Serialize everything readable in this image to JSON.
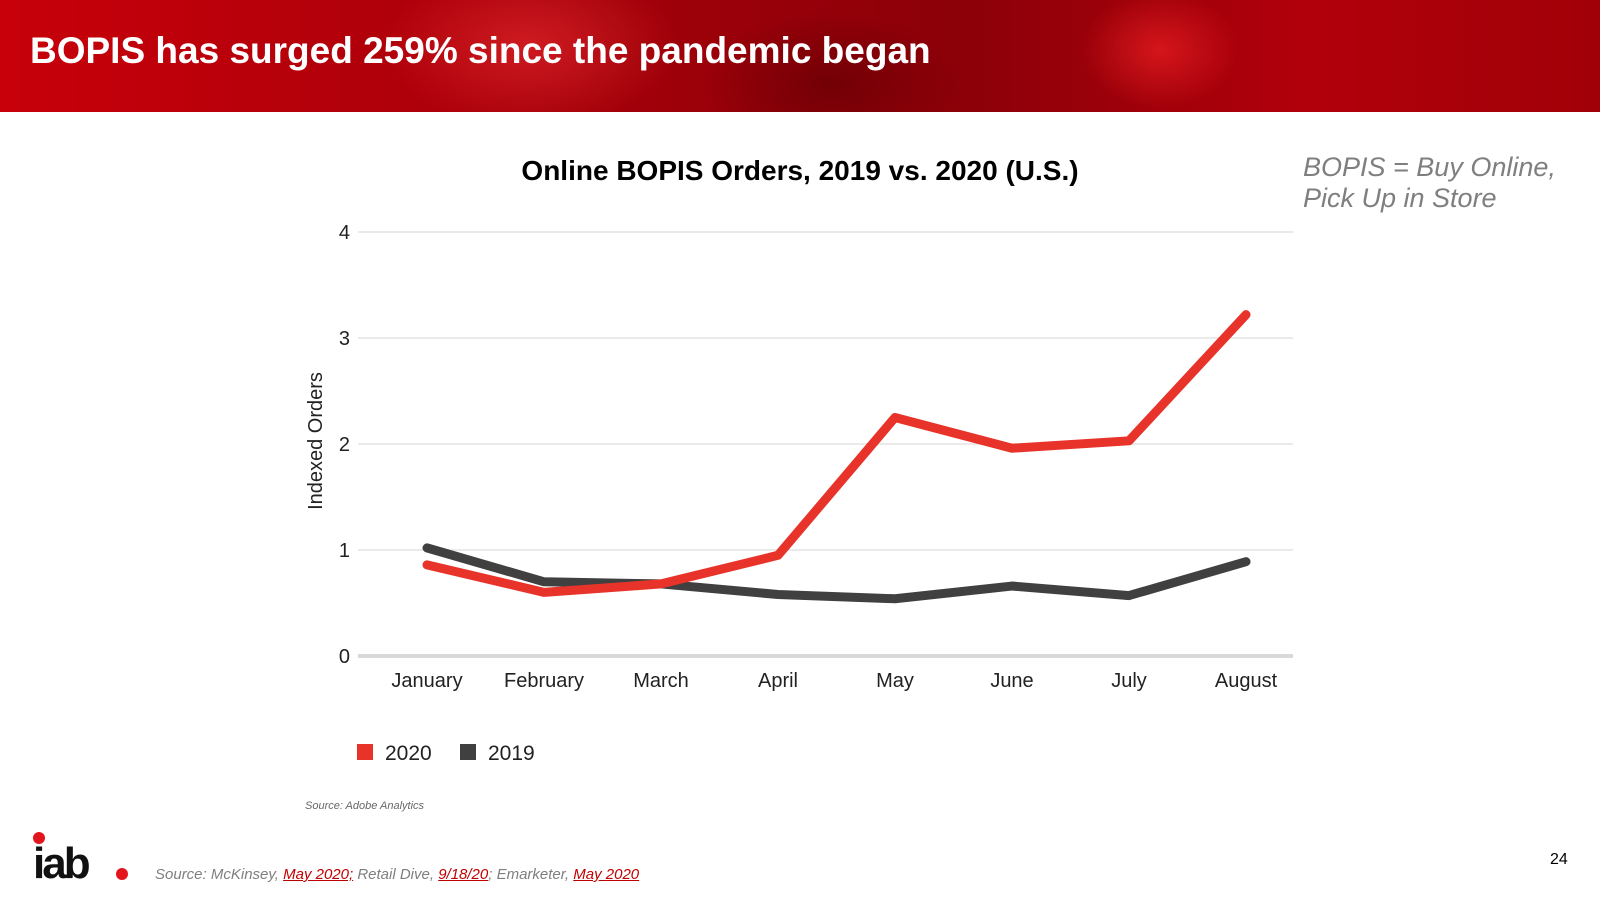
{
  "slide": {
    "title": "BOPIS has surged 259% since the pandemic began",
    "definition_line1": "BOPIS = Buy Online,",
    "definition_line2": "Pick Up in Store",
    "page_number": "24",
    "logo_text": "iab."
  },
  "footer": {
    "prefix": "Source: McKinsey, ",
    "link1": "May 2020;",
    "mid1": "  Retail Dive, ",
    "link2": "9/18/20",
    "mid2": "; Emarketer, ",
    "link3": "May 2020"
  },
  "chart_data": {
    "type": "line",
    "title": "Online BOPIS Orders, 2019 vs. 2020 (U.S.)",
    "xlabel": "",
    "ylabel": "Indexed Orders",
    "categories": [
      "January",
      "February",
      "March",
      "April",
      "May",
      "June",
      "July",
      "August"
    ],
    "series": [
      {
        "name": "2020",
        "color": "#e8332a",
        "values": [
          0.86,
          0.6,
          0.68,
          0.95,
          2.25,
          1.96,
          2.03,
          3.22
        ]
      },
      {
        "name": "2019",
        "color": "#404040",
        "values": [
          1.02,
          0.7,
          0.68,
          0.58,
          0.54,
          0.66,
          0.57,
          0.89
        ]
      }
    ],
    "yticks": [
      "0",
      "1",
      "2",
      "3",
      "4"
    ],
    "ylim": [
      0,
      4
    ],
    "grid": true,
    "legend": "bottom-left",
    "source": "Source: Adobe Analytics"
  }
}
